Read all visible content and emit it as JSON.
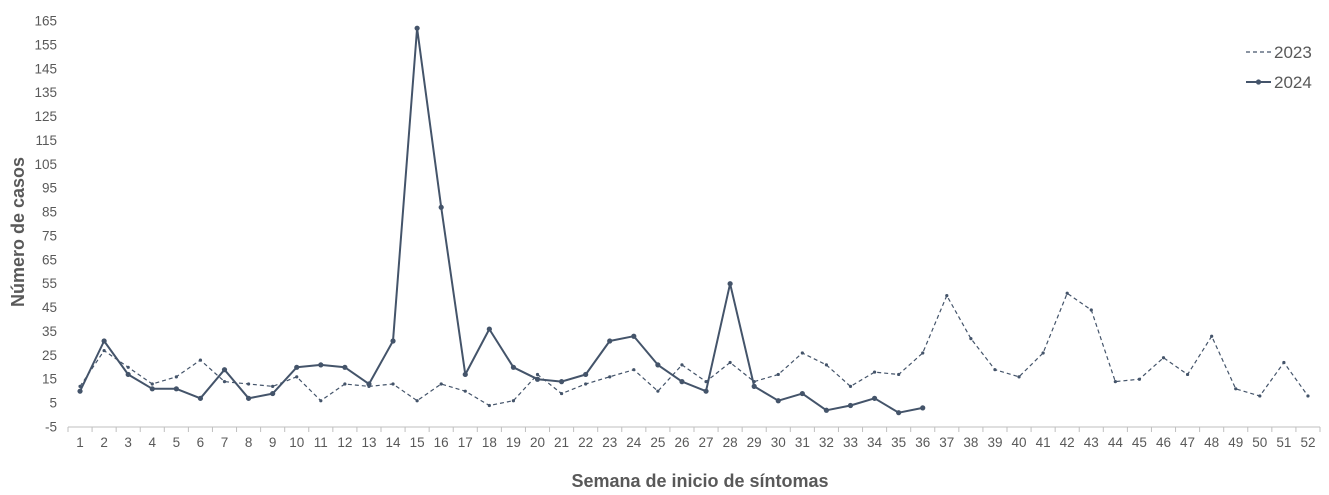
{
  "chart_data": {
    "type": "line",
    "title": "",
    "xlabel": "Semana de inicio de síntomas",
    "ylabel": "Número de casos",
    "x": [
      1,
      2,
      3,
      4,
      5,
      6,
      7,
      8,
      9,
      10,
      11,
      12,
      13,
      14,
      15,
      16,
      17,
      18,
      19,
      20,
      21,
      22,
      23,
      24,
      25,
      26,
      27,
      28,
      29,
      30,
      31,
      32,
      33,
      34,
      35,
      36,
      37,
      38,
      39,
      40,
      41,
      42,
      43,
      44,
      45,
      46,
      47,
      48,
      49,
      50,
      51,
      52
    ],
    "ylim": [
      -5,
      165
    ],
    "yticks": [
      -5,
      5,
      15,
      25,
      35,
      45,
      55,
      65,
      75,
      85,
      95,
      105,
      115,
      125,
      135,
      145,
      155,
      165
    ],
    "grid": false,
    "legend_position": "top-right",
    "series": [
      {
        "name": "2023",
        "color": "#44546a",
        "style": "dashed",
        "values": [
          12,
          27,
          20,
          13,
          16,
          23,
          14,
          13,
          12,
          16,
          6,
          13,
          12,
          13,
          6,
          13,
          10,
          4,
          6,
          17,
          9,
          13,
          16,
          19,
          10,
          21,
          14,
          22,
          14,
          17,
          26,
          21,
          12,
          18,
          17,
          26,
          50,
          32,
          19,
          16,
          26,
          51,
          44,
          14,
          15,
          24,
          17,
          33,
          11,
          8,
          22,
          8
        ]
      },
      {
        "name": "2024",
        "color": "#44546a",
        "style": "solid",
        "values": [
          10,
          31,
          17,
          11,
          11,
          7,
          19,
          7,
          9,
          20,
          21,
          20,
          13,
          31,
          162,
          87,
          17,
          36,
          20,
          15,
          14,
          17,
          31,
          33,
          21,
          14,
          10,
          55,
          12,
          6,
          9,
          2,
          4,
          7,
          1,
          3,
          null,
          null,
          null,
          null,
          null,
          null,
          null,
          null,
          null,
          null,
          null,
          null,
          null,
          null,
          null,
          null
        ]
      }
    ]
  }
}
